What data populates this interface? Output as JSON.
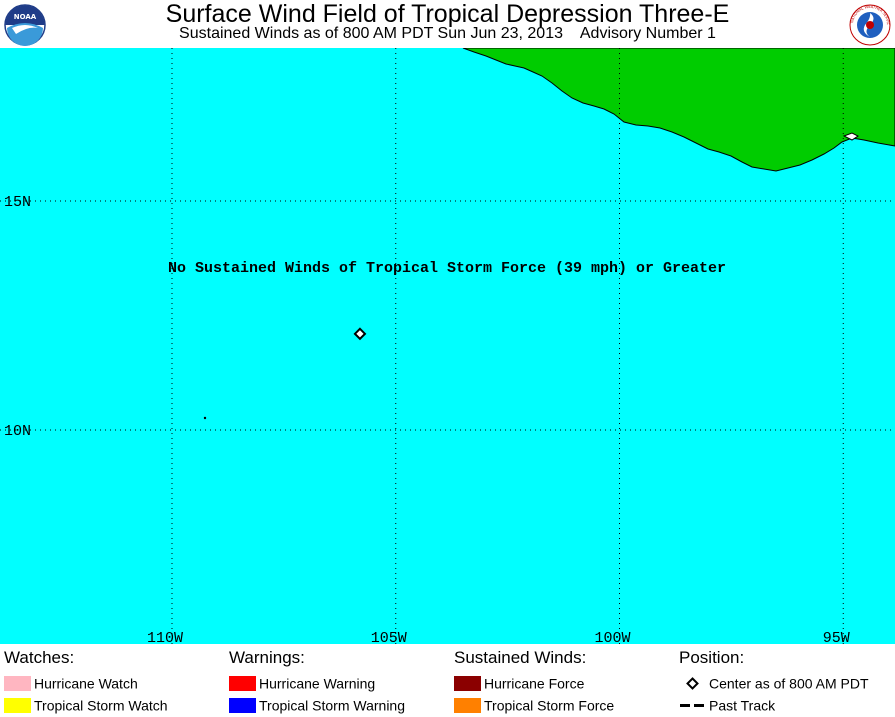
{
  "header": {
    "title": "Surface Wind Field of Tropical Depression Three-E",
    "subtitle": "Sustained Winds as of 800 AM PDT Sun Jun 23, 2013    Advisory Number 1"
  },
  "logos": {
    "left": {
      "icon": "noaa-logo-icon",
      "text": "NOAA"
    },
    "right": {
      "icon": "national-weather-service-logo-icon",
      "text": "NATIONAL WEATHER SERVICE"
    }
  },
  "map": {
    "ocean_color": "#00ffff",
    "land_color": "#00cc00",
    "message": "No Sustained Winds of Tropical Storm Force (39 mph) or Greater",
    "lat_labels": [
      "15N",
      "10N"
    ],
    "lon_labels": [
      "110W",
      "105W",
      "100W",
      "95W"
    ],
    "storm_center": {
      "lat": 12.1,
      "lon": -105.8
    }
  },
  "legend": {
    "watches": {
      "heading": "Watches:",
      "items": [
        {
          "label": "Hurricane Watch",
          "color": "#ffb6c1"
        },
        {
          "label": "Tropical Storm Watch",
          "color": "#ffff00"
        }
      ]
    },
    "warnings": {
      "heading": "Warnings:",
      "items": [
        {
          "label": "Hurricane Warning",
          "color": "#ff0000"
        },
        {
          "label": "Tropical Storm Warning",
          "color": "#0000ff"
        }
      ]
    },
    "sustained_winds": {
      "heading": "Sustained Winds:",
      "items": [
        {
          "label": "Hurricane Force",
          "color": "#8b0000"
        },
        {
          "label": "Tropical Storm Force",
          "color": "#ff8000"
        }
      ]
    },
    "position": {
      "heading": "Position:",
      "items": [
        {
          "label": "Center as of 800 AM PDT",
          "icon": "diamond-icon"
        },
        {
          "label": "Past Track",
          "icon": "dashed-line-icon"
        }
      ]
    }
  }
}
